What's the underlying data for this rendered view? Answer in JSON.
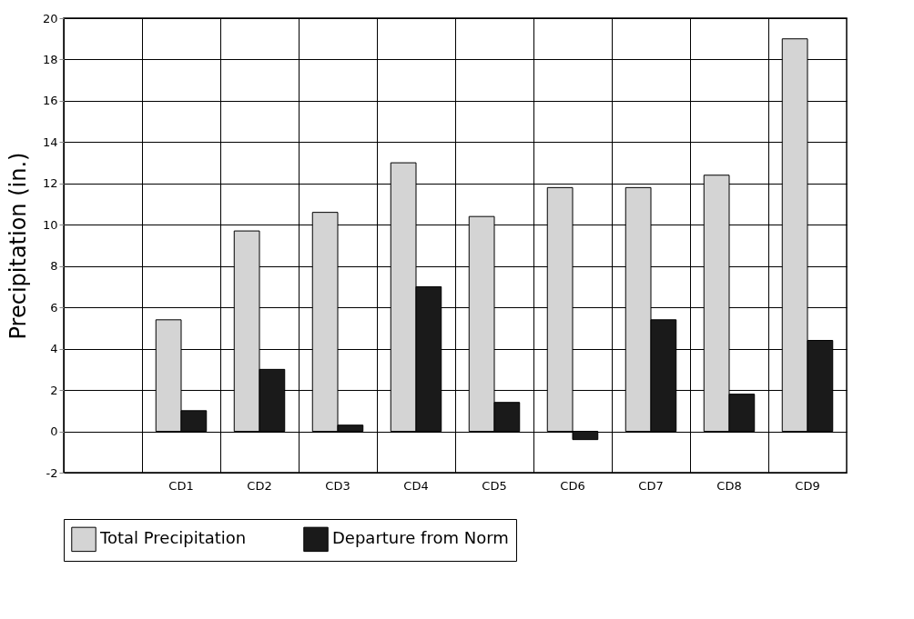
{
  "chart_data": {
    "type": "bar",
    "ylabel": "Precipitation (in.)",
    "categories": [
      null,
      "CD1",
      "CD2",
      "CD3",
      "CD4",
      "CD5",
      "CD6",
      "CD7",
      "CD8",
      "CD9"
    ],
    "series": [
      {
        "name": "Total Precipitation",
        "color": "#d4d4d4",
        "values": [
          null,
          5.4,
          9.7,
          10.6,
          13.0,
          10.4,
          11.8,
          11.8,
          12.4,
          19.0
        ]
      },
      {
        "name": "Departure from Norm",
        "color": "#1a1a1a",
        "values": [
          null,
          1.0,
          3.0,
          0.3,
          7.0,
          1.4,
          -0.4,
          5.4,
          1.8,
          4.4
        ]
      }
    ],
    "ylim": [
      -2,
      20
    ],
    "yticks": [
      -2,
      0,
      2,
      4,
      6,
      8,
      10,
      12,
      14,
      16,
      18,
      20
    ],
    "grid": true,
    "legend": "bottom"
  }
}
